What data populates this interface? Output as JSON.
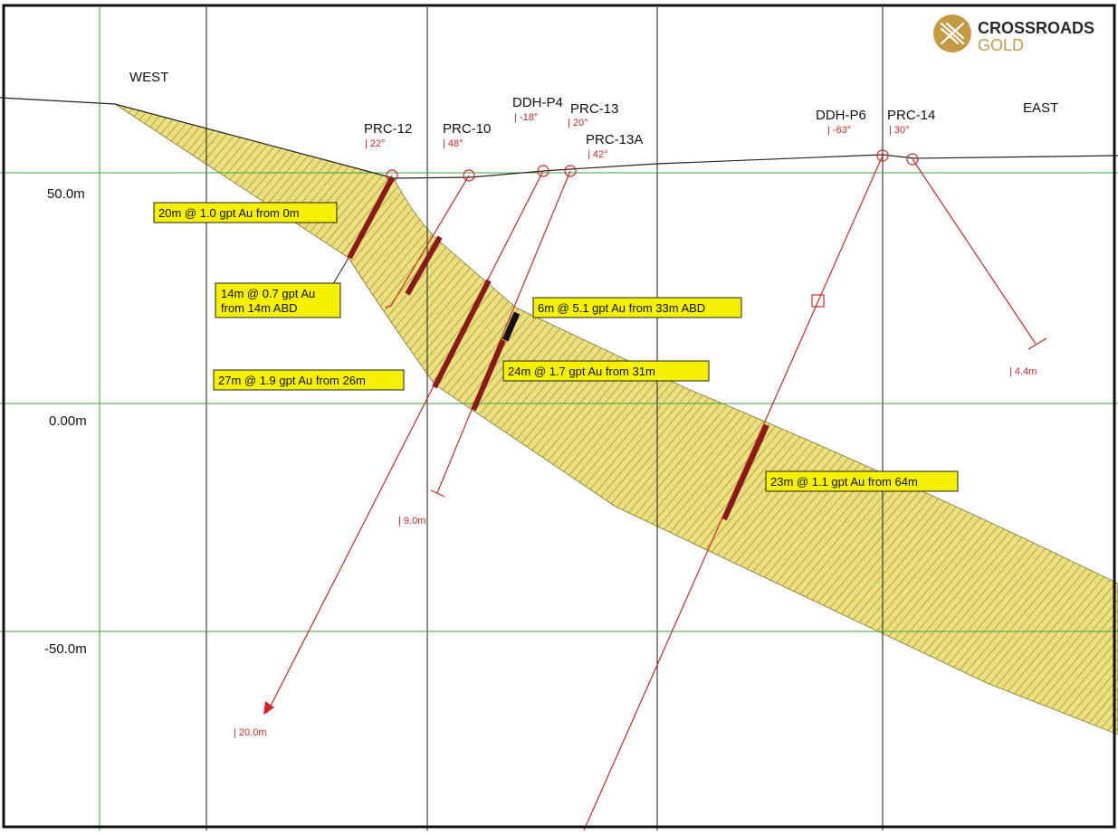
{
  "logo": {
    "line1": "CROSSROADS",
    "line2": "GOLD",
    "gold_color": "#c49a45",
    "dark_color": "#2a2a2a"
  },
  "directions": {
    "west": "WEST",
    "east": "EAST"
  },
  "elevations": {
    "top": "50.0m",
    "middle": "0.00m",
    "bottom": "-50.0m"
  },
  "colors": {
    "zone_fill": "#ede07a",
    "zone_hatch": "#4a5a40",
    "drill_trace": "#d02525",
    "intercept": "#8a1a1a",
    "grid_vertical": "#1a1a1a",
    "grid_horizontal": "#3aa63a",
    "label_fill": "#f5f000"
  },
  "drillholes": [
    {
      "name": "PRC-12",
      "dip": "| 22°",
      "depth": ""
    },
    {
      "name": "PRC-10",
      "dip": "| 48°",
      "depth": "| 9.0m"
    },
    {
      "name": "DDH-P4",
      "dip": "| -18°",
      "depth": "| 20.0m"
    },
    {
      "name": "PRC-13",
      "dip": "| 20°",
      "depth": ""
    },
    {
      "name": "PRC-13A",
      "dip": "| 42°",
      "depth": ""
    },
    {
      "name": "DDH-P6",
      "dip": "| -63°",
      "depth": ""
    },
    {
      "name": "PRC-14",
      "dip": "| 30°",
      "depth": "| 4.4m"
    }
  ],
  "intercepts": [
    "20m @ 1.0 gpt Au from 0m",
    "14m @ 0.7 gpt Au",
    "from 14m ABD",
    "6m @ 5.1 gpt Au from 33m ABD",
    "27m @ 1.9 gpt Au from 26m",
    "24m @ 1.7 gpt Au from 31m",
    "23m @ 1.1 gpt Au from 64m"
  ]
}
